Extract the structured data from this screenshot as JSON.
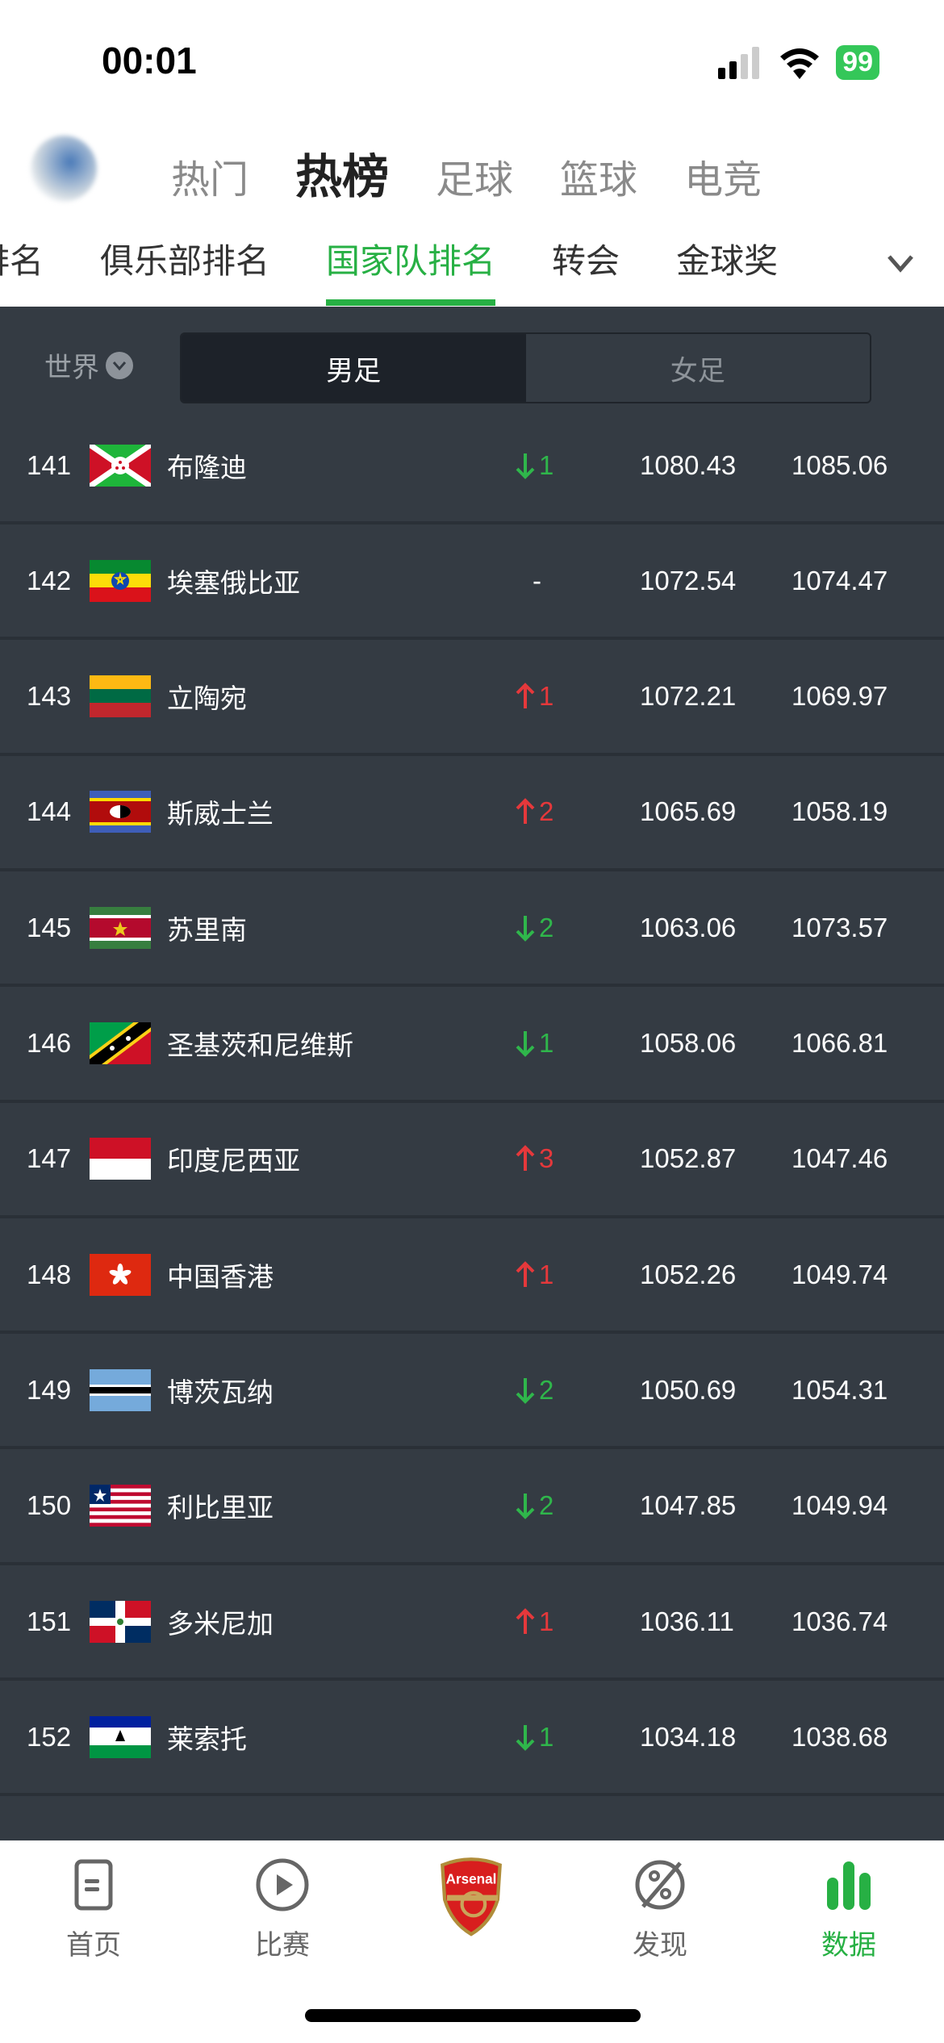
{
  "status_bar": {
    "time": "00:01",
    "battery": "99"
  },
  "top_tabs": [
    {
      "label": "热门",
      "active": false
    },
    {
      "label": "热榜",
      "active": true
    },
    {
      "label": "足球",
      "active": false
    },
    {
      "label": "篮球",
      "active": false
    },
    {
      "label": "电竞",
      "active": false
    }
  ],
  "sub_tabs": [
    {
      "label": "排名",
      "active": false
    },
    {
      "label": "俱乐部排名",
      "active": false
    },
    {
      "label": "国家队排名",
      "active": true
    },
    {
      "label": "转会",
      "active": false
    },
    {
      "label": "金球奖",
      "active": false
    }
  ],
  "filter": {
    "region": "世界",
    "segments": [
      {
        "label": "男足",
        "active": true
      },
      {
        "label": "女足",
        "active": false
      }
    ]
  },
  "colors": {
    "accent": "#27b044",
    "down": "#2fb64b",
    "up": "#e5383b",
    "background": "#343b43"
  },
  "rows": [
    {
      "rank": "141",
      "flag": "burundi-flag",
      "name": "布隆迪",
      "dir": "down",
      "change": "1",
      "points": "1080.43",
      "prev": "1085.06"
    },
    {
      "rank": "142",
      "flag": "ethiopia-flag",
      "name": "埃塞俄比亚",
      "dir": "none",
      "change": "-",
      "points": "1072.54",
      "prev": "1074.47"
    },
    {
      "rank": "143",
      "flag": "lithuania-flag",
      "name": "立陶宛",
      "dir": "up",
      "change": "1",
      "points": "1072.21",
      "prev": "1069.97"
    },
    {
      "rank": "144",
      "flag": "eswatini-flag",
      "name": "斯威士兰",
      "dir": "up",
      "change": "2",
      "points": "1065.69",
      "prev": "1058.19"
    },
    {
      "rank": "145",
      "flag": "suriname-flag",
      "name": "苏里南",
      "dir": "down",
      "change": "2",
      "points": "1063.06",
      "prev": "1073.57"
    },
    {
      "rank": "146",
      "flag": "saint-kitts-nevis-flag",
      "name": "圣基茨和尼维斯",
      "dir": "down",
      "change": "1",
      "points": "1058.06",
      "prev": "1066.81"
    },
    {
      "rank": "147",
      "flag": "indonesia-flag",
      "name": "印度尼西亚",
      "dir": "up",
      "change": "3",
      "points": "1052.87",
      "prev": "1047.46"
    },
    {
      "rank": "148",
      "flag": "hong-kong-flag",
      "name": "中国香港",
      "dir": "up",
      "change": "1",
      "points": "1052.26",
      "prev": "1049.74"
    },
    {
      "rank": "149",
      "flag": "botswana-flag",
      "name": "博茨瓦纳",
      "dir": "down",
      "change": "2",
      "points": "1050.69",
      "prev": "1054.31"
    },
    {
      "rank": "150",
      "flag": "liberia-flag",
      "name": "利比里亚",
      "dir": "down",
      "change": "2",
      "points": "1047.85",
      "prev": "1049.94"
    },
    {
      "rank": "151",
      "flag": "dominican-republic-flag",
      "name": "多米尼加",
      "dir": "up",
      "change": "1",
      "points": "1036.11",
      "prev": "1036.74"
    },
    {
      "rank": "152",
      "flag": "lesotho-flag",
      "name": "莱索托",
      "dir": "down",
      "change": "1",
      "points": "1034.18",
      "prev": "1038.68"
    }
  ],
  "partial_row_flag": "chad-flag",
  "bottom_nav": [
    {
      "label": "首页",
      "icon": "home-doc-icon"
    },
    {
      "label": "比赛",
      "icon": "play-circle-icon"
    },
    {
      "label": "",
      "icon": "arsenal-crest-icon",
      "logo_text": "Arsenal"
    },
    {
      "label": "发现",
      "icon": "planet-icon"
    },
    {
      "label": "数据",
      "icon": "bar-chart-icon",
      "active": true
    }
  ]
}
